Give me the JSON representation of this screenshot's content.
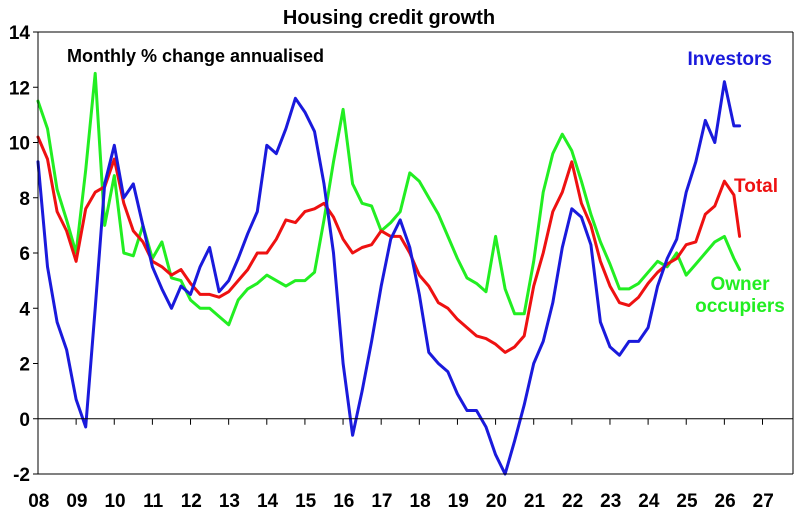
{
  "chart_data": {
    "type": "line",
    "title": "Housing credit growth",
    "subtitle": "Monthly % change annualised",
    "xlabel": "",
    "ylabel": "",
    "ylim": [
      -2,
      14
    ],
    "xlim": [
      2008,
      2027.8
    ],
    "yticks": [
      "-2",
      "0",
      "2",
      "4",
      "6",
      "8",
      "10",
      "12",
      "14"
    ],
    "xticks": [
      "08",
      "09",
      "10",
      "11",
      "12",
      "13",
      "14",
      "15",
      "16",
      "17",
      "18",
      "19",
      "20",
      "21",
      "22",
      "23",
      "24",
      "25",
      "26",
      "27"
    ],
    "grid": false,
    "series": [
      {
        "name": "Investors",
        "label_lines": [
          "Investors"
        ],
        "color": "#1a1adc",
        "x": [
          2008.0,
          2008.25,
          2008.5,
          2008.75,
          2009.0,
          2009.25,
          2009.5,
          2009.75,
          2010.0,
          2010.25,
          2010.5,
          2010.75,
          2011.0,
          2011.25,
          2011.5,
          2011.75,
          2012.0,
          2012.25,
          2012.5,
          2012.75,
          2013.0,
          2013.25,
          2013.5,
          2013.75,
          2014.0,
          2014.25,
          2014.5,
          2014.75,
          2015.0,
          2015.25,
          2015.5,
          2015.75,
          2016.0,
          2016.25,
          2016.5,
          2016.75,
          2017.0,
          2017.25,
          2017.5,
          2017.75,
          2018.0,
          2018.25,
          2018.5,
          2018.75,
          2019.0,
          2019.25,
          2019.5,
          2019.75,
          2020.0,
          2020.25,
          2020.5,
          2020.75,
          2021.0,
          2021.25,
          2021.5,
          2021.75,
          2022.0,
          2022.25,
          2022.5,
          2022.75,
          2023.0,
          2023.25,
          2023.5,
          2023.75,
          2024.0,
          2024.25,
          2024.5,
          2024.75,
          2025.0,
          2025.25,
          2025.5,
          2025.75,
          2026.0,
          2026.25,
          2026.4
        ],
        "values": [
          9.3,
          5.5,
          3.5,
          2.5,
          0.7,
          -0.3,
          4.0,
          8.5,
          9.9,
          8.0,
          8.5,
          7.0,
          5.5,
          4.7,
          4.0,
          4.8,
          4.5,
          5.5,
          6.2,
          4.6,
          5.0,
          5.8,
          6.7,
          7.5,
          9.9,
          9.6,
          10.5,
          11.6,
          11.1,
          10.4,
          8.5,
          6.0,
          2.0,
          -0.6,
          1.0,
          2.8,
          4.8,
          6.5,
          7.2,
          6.2,
          4.5,
          2.4,
          2.0,
          1.7,
          0.9,
          0.3,
          0.3,
          -0.3,
          -1.3,
          -2.0,
          -0.8,
          0.5,
          2.0,
          2.8,
          4.2,
          6.2,
          7.6,
          7.3,
          6.3,
          3.5,
          2.6,
          2.3,
          2.8,
          2.8,
          3.3,
          4.8,
          5.8,
          6.5,
          8.2,
          9.3,
          10.8,
          10.0,
          12.2,
          10.6,
          10.6
        ]
      },
      {
        "name": "Total",
        "label_lines": [
          "Total"
        ],
        "color": "#ee1111",
        "x": [
          2008.0,
          2008.25,
          2008.5,
          2008.75,
          2009.0,
          2009.25,
          2009.5,
          2009.75,
          2010.0,
          2010.25,
          2010.5,
          2010.75,
          2011.0,
          2011.25,
          2011.5,
          2011.75,
          2012.0,
          2012.25,
          2012.5,
          2012.75,
          2013.0,
          2013.25,
          2013.5,
          2013.75,
          2014.0,
          2014.25,
          2014.5,
          2014.75,
          2015.0,
          2015.25,
          2015.5,
          2015.75,
          2016.0,
          2016.25,
          2016.5,
          2016.75,
          2017.0,
          2017.25,
          2017.5,
          2017.75,
          2018.0,
          2018.25,
          2018.5,
          2018.75,
          2019.0,
          2019.25,
          2019.5,
          2019.75,
          2020.0,
          2020.25,
          2020.5,
          2020.75,
          2021.0,
          2021.25,
          2021.5,
          2021.75,
          2022.0,
          2022.25,
          2022.5,
          2022.75,
          2023.0,
          2023.25,
          2023.5,
          2023.75,
          2024.0,
          2024.25,
          2024.5,
          2024.75,
          2025.0,
          2025.25,
          2025.5,
          2025.75,
          2026.0,
          2026.25,
          2026.4
        ],
        "values": [
          10.2,
          9.4,
          7.5,
          6.8,
          5.7,
          7.6,
          8.2,
          8.4,
          9.4,
          7.8,
          6.8,
          6.4,
          5.7,
          5.5,
          5.2,
          5.4,
          4.9,
          4.5,
          4.5,
          4.4,
          4.6,
          5.0,
          5.4,
          6.0,
          6.0,
          6.5,
          7.2,
          7.1,
          7.5,
          7.6,
          7.8,
          7.3,
          6.5,
          6.0,
          6.2,
          6.3,
          6.8,
          6.6,
          6.6,
          6.0,
          5.2,
          4.8,
          4.2,
          4.0,
          3.6,
          3.3,
          3.0,
          2.9,
          2.7,
          2.4,
          2.6,
          3.0,
          4.8,
          6.0,
          7.5,
          8.2,
          9.3,
          7.8,
          7.0,
          5.7,
          4.8,
          4.2,
          4.1,
          4.4,
          4.9,
          5.3,
          5.6,
          5.8,
          6.3,
          6.4,
          7.4,
          7.7,
          8.6,
          8.1,
          6.6
        ]
      },
      {
        "name": "Owner occupiers",
        "label_lines": [
          "Owner",
          "occupiers"
        ],
        "color": "#22ee22",
        "x": [
          2008.0,
          2008.25,
          2008.5,
          2008.75,
          2009.0,
          2009.25,
          2009.5,
          2009.75,
          2010.0,
          2010.25,
          2010.5,
          2010.75,
          2011.0,
          2011.25,
          2011.5,
          2011.75,
          2012.0,
          2012.25,
          2012.5,
          2012.75,
          2013.0,
          2013.25,
          2013.5,
          2013.75,
          2014.0,
          2014.25,
          2014.5,
          2014.75,
          2015.0,
          2015.25,
          2015.5,
          2015.75,
          2016.0,
          2016.25,
          2016.5,
          2016.75,
          2017.0,
          2017.25,
          2017.5,
          2017.75,
          2018.0,
          2018.25,
          2018.5,
          2018.75,
          2019.0,
          2019.25,
          2019.5,
          2019.75,
          2020.0,
          2020.25,
          2020.5,
          2020.75,
          2021.0,
          2021.25,
          2021.5,
          2021.75,
          2022.0,
          2022.25,
          2022.5,
          2022.75,
          2023.0,
          2023.25,
          2023.5,
          2023.75,
          2024.0,
          2024.25,
          2024.5,
          2024.75,
          2025.0,
          2025.25,
          2025.5,
          2025.75,
          2026.0,
          2026.25,
          2026.4
        ],
        "values": [
          11.5,
          10.5,
          8.3,
          7.2,
          6.0,
          9.0,
          12.5,
          7.0,
          8.8,
          6.0,
          5.9,
          7.0,
          5.8,
          6.4,
          5.1,
          5.0,
          4.3,
          4.0,
          4.0,
          3.7,
          3.4,
          4.3,
          4.7,
          4.9,
          5.2,
          5.0,
          4.8,
          5.0,
          5.0,
          5.3,
          7.2,
          9.3,
          11.2,
          8.5,
          7.8,
          7.7,
          6.8,
          7.1,
          7.5,
          8.9,
          8.6,
          8.0,
          7.4,
          6.6,
          5.8,
          5.1,
          4.9,
          4.6,
          6.6,
          4.7,
          3.8,
          3.8,
          5.7,
          8.2,
          9.6,
          10.3,
          9.7,
          8.6,
          7.4,
          6.4,
          5.6,
          4.7,
          4.7,
          4.9,
          5.3,
          5.7,
          5.5,
          6.0,
          5.2,
          5.6,
          6.0,
          6.4,
          6.6,
          5.8,
          5.4
        ]
      }
    ]
  }
}
